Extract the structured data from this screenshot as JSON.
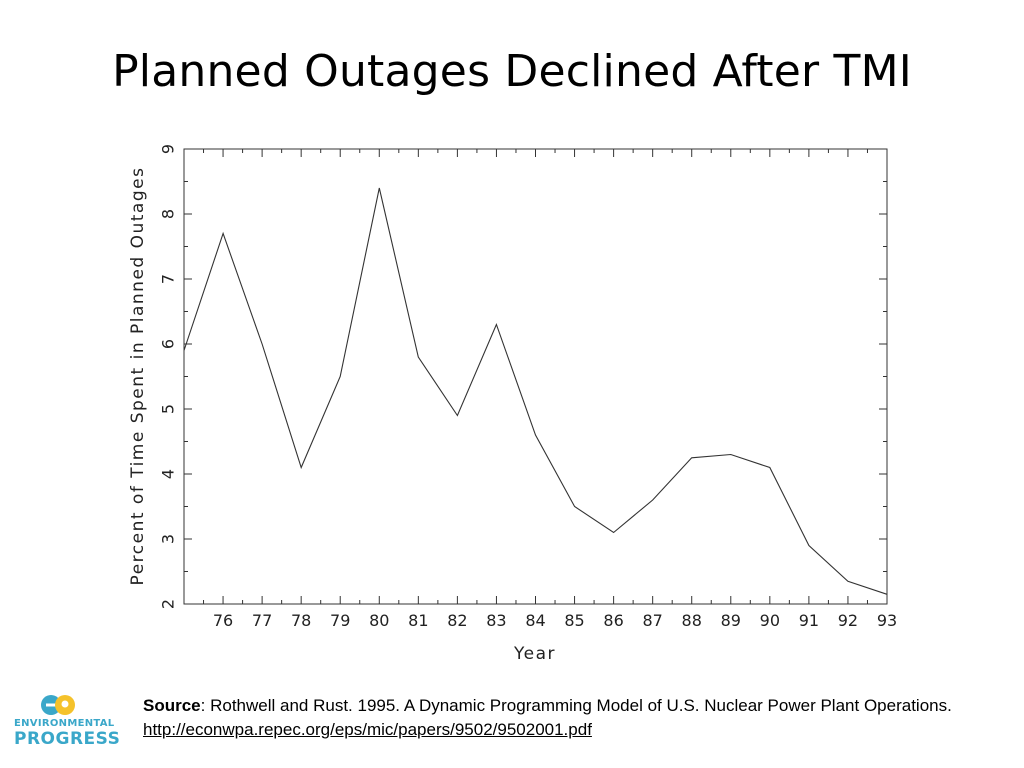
{
  "slide": {
    "title": "Planned Outages Declined After TMI"
  },
  "logo": {
    "line1": "ENVIRONMENTAL",
    "line2": "PROGRESS",
    "colors": {
      "blue": "#3aa7c9",
      "yellow": "#f5c22b"
    }
  },
  "source": {
    "label": "Source",
    "text": ": Rothwell and Rust. 1995. A Dynamic Programming Model of U.S. Nuclear Power Plant Operations.",
    "url": "http://econwpa.repec.org/eps/mic/papers/9502/9502001.pdf"
  },
  "chart_data": {
    "type": "line",
    "title": "",
    "xlabel": "Year",
    "ylabel": "Percent of Time Spent in Planned Outages",
    "xlim": [
      75,
      93
    ],
    "ylim": [
      2,
      9
    ],
    "x_ticks": [
      76,
      77,
      78,
      79,
      80,
      81,
      82,
      83,
      84,
      85,
      86,
      87,
      88,
      89,
      90,
      91,
      92,
      93
    ],
    "y_ticks": [
      2,
      3,
      4,
      5,
      6,
      7,
      8,
      9
    ],
    "grid": false,
    "legend": "none",
    "line_color": "#333333",
    "series": [
      {
        "x": [
          75,
          76,
          77,
          78,
          79,
          80,
          81,
          82,
          83,
          84,
          85,
          86,
          87,
          88,
          89,
          90,
          91,
          92,
          93
        ],
        "values": [
          5.9,
          7.7,
          6.0,
          4.1,
          5.5,
          8.4,
          5.8,
          4.9,
          6.3,
          4.6,
          3.5,
          3.1,
          3.6,
          4.25,
          4.3,
          4.1,
          2.9,
          2.35,
          2.15
        ]
      }
    ]
  }
}
